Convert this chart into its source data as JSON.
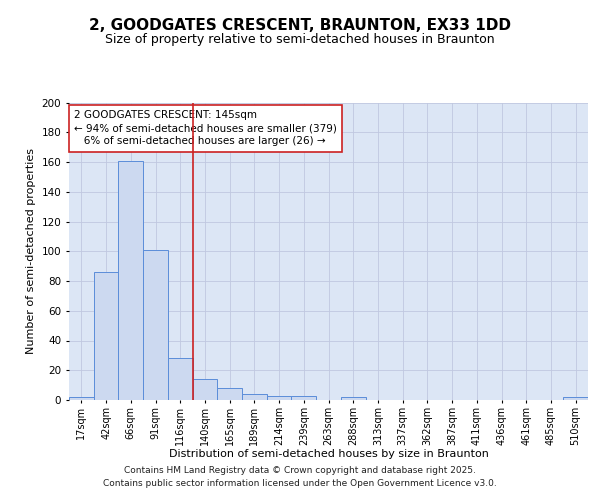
{
  "title_line1": "2, GOODGATES CRESCENT, BRAUNTON, EX33 1DD",
  "title_line2": "Size of property relative to semi-detached houses in Braunton",
  "xlabel": "Distribution of semi-detached houses by size in Braunton",
  "ylabel": "Number of semi-detached properties",
  "bin_labels": [
    "17sqm",
    "42sqm",
    "66sqm",
    "91sqm",
    "116sqm",
    "140sqm",
    "165sqm",
    "189sqm",
    "214sqm",
    "239sqm",
    "263sqm",
    "288sqm",
    "313sqm",
    "337sqm",
    "362sqm",
    "387sqm",
    "411sqm",
    "436sqm",
    "461sqm",
    "485sqm",
    "510sqm"
  ],
  "bar_heights": [
    2,
    86,
    161,
    101,
    28,
    14,
    8,
    4,
    3,
    3,
    0,
    2,
    0,
    0,
    0,
    0,
    0,
    0,
    0,
    0,
    2
  ],
  "bar_color": "#ccd9f0",
  "bar_edge_color": "#5b8dd9",
  "grid_color": "#c0c8e0",
  "background_color": "#dce6f5",
  "vline_x_index": 5,
  "vline_color": "#cc2222",
  "annotation_line1": "2 GOODGATES CRESCENT: 145sqm",
  "annotation_line2": "← 94% of semi-detached houses are smaller (379)",
  "annotation_line3": "   6% of semi-detached houses are larger (26) →",
  "annotation_box_color": "#ffffff",
  "annotation_edge_color": "#cc2222",
  "footer_line1": "Contains HM Land Registry data © Crown copyright and database right 2025.",
  "footer_line2": "Contains public sector information licensed under the Open Government Licence v3.0.",
  "ylim": [
    0,
    200
  ],
  "yticks": [
    0,
    20,
    40,
    60,
    80,
    100,
    120,
    140,
    160,
    180,
    200
  ],
  "title_fontsize": 11,
  "subtitle_fontsize": 9,
  "ylabel_fontsize": 8,
  "xlabel_fontsize": 8,
  "tick_fontsize": 7,
  "annotation_fontsize": 7.5,
  "footer_fontsize": 6.5
}
